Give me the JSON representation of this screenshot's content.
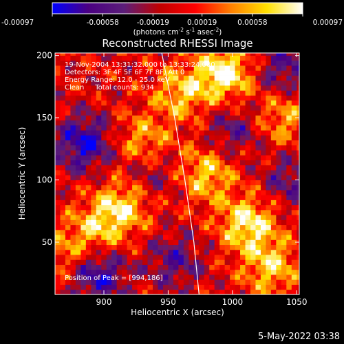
{
  "chart_data": {
    "type": "heatmap",
    "title": "Reconstructed RHESSI Image",
    "xlabel": "Heliocentric X (arcsec)",
    "ylabel": "Heliocentric Y (arcsec)",
    "xlim": [
      862,
      1052
    ],
    "ylim": [
      8,
      202
    ],
    "x_ticks": [
      900,
      950,
      1000,
      1050
    ],
    "y_ticks": [
      50,
      100,
      150,
      200
    ],
    "colorbar": {
      "range": [
        -0.00097,
        0.00097
      ],
      "tick_values": [
        -0.00097,
        -0.00058,
        -0.00019,
        0.00019,
        0.00058,
        0.00097
      ],
      "tick_labels": [
        "-0.00097",
        "-0.00058",
        "-0.00019",
        "0.00019",
        "0.00058",
        "0.00097"
      ],
      "units_prefix": "(photons cm",
      "units_exp1": "-2",
      "units_mid": " s",
      "units_exp2": "-1",
      "units_suffix": " asec",
      "units_exp3": "-2",
      "units_close": ")"
    },
    "annotations": [
      "19-Nov-2004 13:31:32.000 to 13:33:24.000",
      "Detectors: 3F 4F 5F 6F 7F 8F, Att 0",
      "Energy Range: 12.0 - 25.0 keV",
      "Clean     Total counts: 934"
    ],
    "peak_label": "Position of Peak = [994,186]",
    "peak_position": [
      994,
      186
    ],
    "limb_curve": [
      [
        945,
        202
      ],
      [
        955,
        150
      ],
      [
        963,
        100
      ],
      [
        970,
        50
      ],
      [
        974,
        8
      ]
    ],
    "bright_regions": [
      {
        "x": 994,
        "y": 186,
        "amplitude": 1.0
      },
      {
        "x": 1012,
        "y": 65,
        "amplitude": 0.9
      },
      {
        "x": 1030,
        "y": 30,
        "amplitude": 0.7
      },
      {
        "x": 915,
        "y": 80,
        "amplitude": 0.75
      },
      {
        "x": 895,
        "y": 60,
        "amplitude": 0.6
      },
      {
        "x": 960,
        "y": 170,
        "amplitude": 0.65
      },
      {
        "x": 930,
        "y": 130,
        "amplitude": 0.6
      },
      {
        "x": 980,
        "y": 105,
        "amplitude": 0.7
      },
      {
        "x": 1040,
        "y": 150,
        "amplitude": 0.55
      },
      {
        "x": 870,
        "y": 40,
        "amplitude": 0.45
      }
    ],
    "dark_regions": [
      {
        "x": 885,
        "y": 130,
        "amplitude": -0.9
      },
      {
        "x": 895,
        "y": 25,
        "amplitude": -0.85
      },
      {
        "x": 1040,
        "y": 190,
        "amplitude": -0.6
      },
      {
        "x": 1000,
        "y": 140,
        "amplitude": -0.5
      },
      {
        "x": 955,
        "y": 35,
        "amplitude": -0.55
      },
      {
        "x": 1045,
        "y": 100,
        "amplitude": -0.5
      },
      {
        "x": 935,
        "y": 105,
        "amplitude": -0.45
      }
    ],
    "colors": {
      "background": "#000000",
      "foreground": "#ffffff",
      "colormap": [
        "#0000ff",
        "#4b0082",
        "#5b1e7a",
        "#c00000",
        "#ff0000",
        "#ff8000",
        "#ffe000",
        "#ffffff"
      ]
    }
  },
  "footer": {
    "date": "5-May-2022 03:38"
  }
}
